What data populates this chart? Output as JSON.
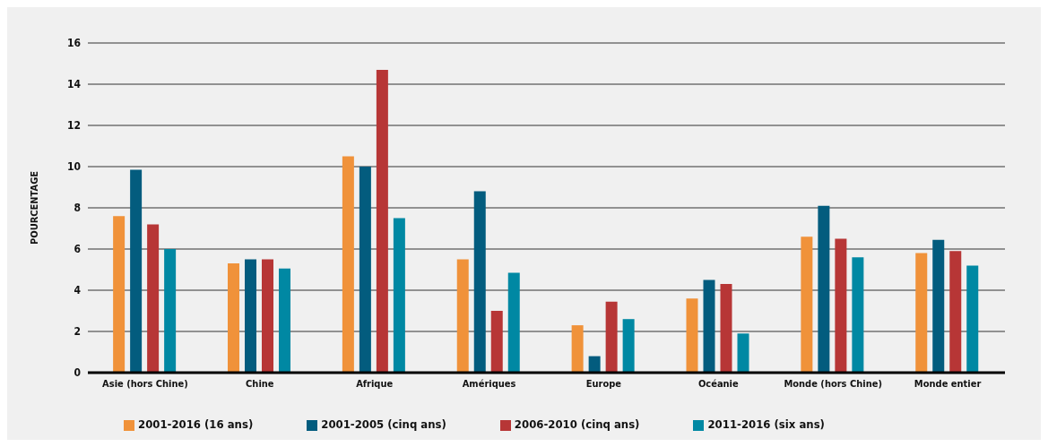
{
  "chart_data": {
    "type": "bar",
    "ylabel": "POURCENTAGE",
    "categories": [
      "Asie (hors Chine)",
      "Chine",
      "Afrique",
      "Amériques",
      "Europe",
      "Océanie",
      "Monde (hors Chine)",
      "Monde entier"
    ],
    "series": [
      {
        "name": "2001-2016 (16 ans)",
        "color": "#f0923a",
        "values": [
          7.6,
          5.3,
          10.5,
          5.5,
          2.3,
          3.6,
          6.6,
          5.8
        ]
      },
      {
        "name": "2001-2005 (cinq ans)",
        "color": "#035c7e",
        "values": [
          9.85,
          5.5,
          10.0,
          8.8,
          0.8,
          4.5,
          8.1,
          6.45
        ]
      },
      {
        "name": "2006-2010 (cinq ans)",
        "color": "#b73636",
        "values": [
          7.2,
          5.5,
          14.7,
          3.0,
          3.45,
          4.3,
          6.5,
          5.9
        ]
      },
      {
        "name": "2011-2016 (six ans)",
        "color": "#0088a3",
        "values": [
          6.0,
          5.05,
          7.5,
          4.85,
          2.6,
          1.9,
          5.6,
          5.2
        ]
      }
    ],
    "ylim": [
      0,
      16
    ],
    "yticks": [
      0,
      2,
      4,
      6,
      8,
      10,
      12,
      14,
      16
    ],
    "grid": "y",
    "legend": "bottom left"
  }
}
